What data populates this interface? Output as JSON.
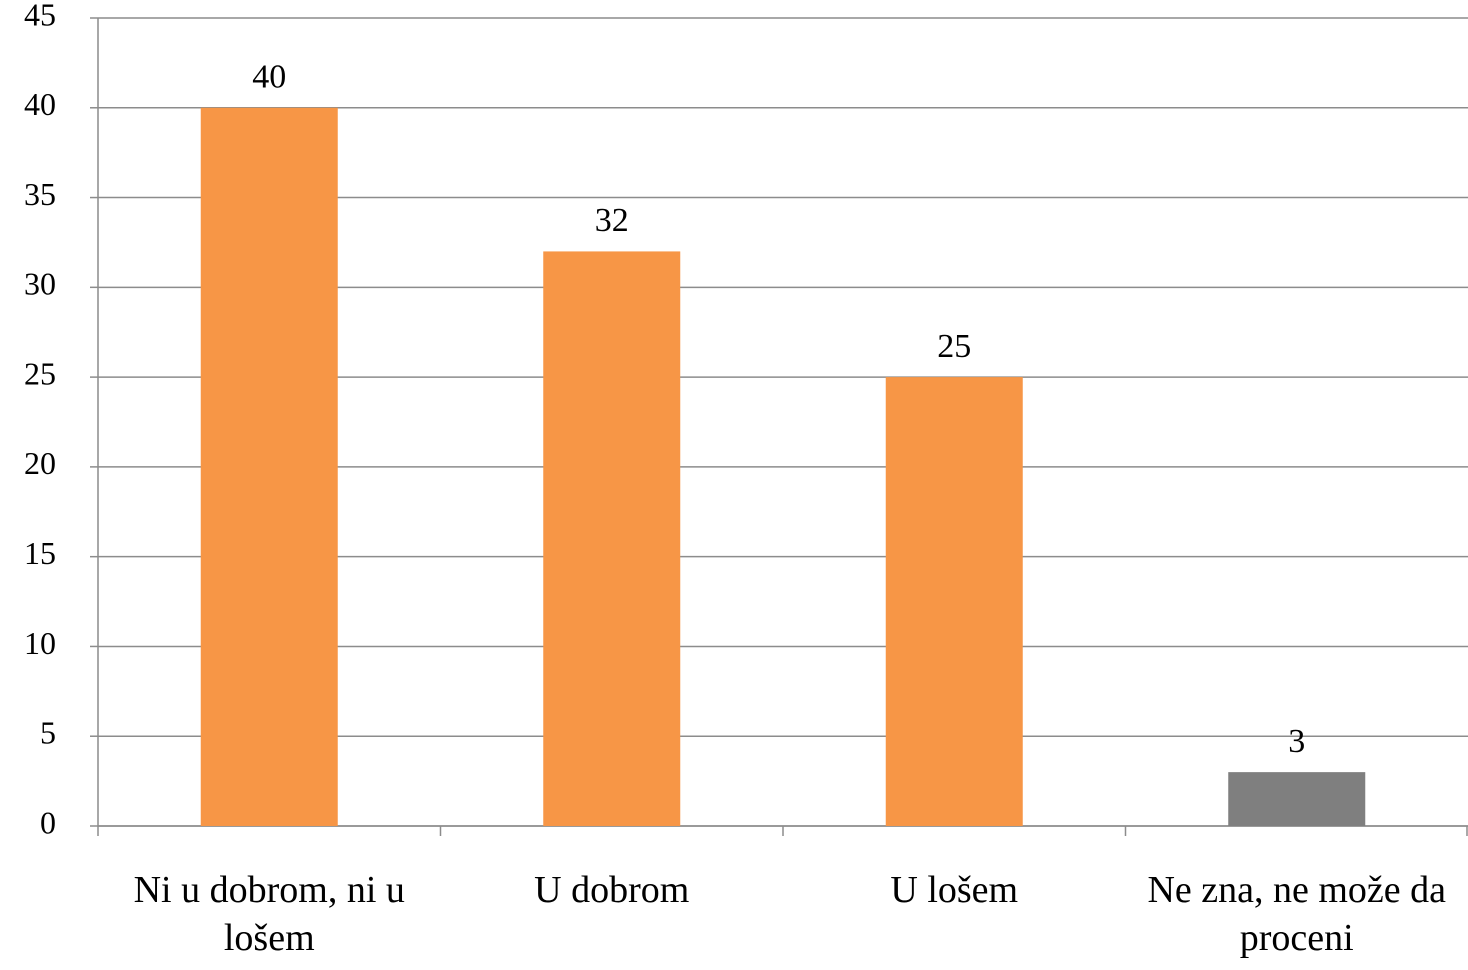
{
  "chart_data": {
    "type": "bar",
    "categories": [
      "Ni u dobrom, ni u lošem",
      "U dobrom",
      "U lošem",
      "Ne zna, ne može da proceni"
    ],
    "values": [
      40,
      32,
      25,
      3
    ],
    "colors": [
      "#f79646",
      "#f79646",
      "#f79646",
      "#7f7f7f"
    ],
    "ylim": [
      0,
      45
    ],
    "yticks": [
      0,
      5,
      10,
      15,
      20,
      25,
      30,
      35,
      40,
      45
    ],
    "grid": true
  }
}
